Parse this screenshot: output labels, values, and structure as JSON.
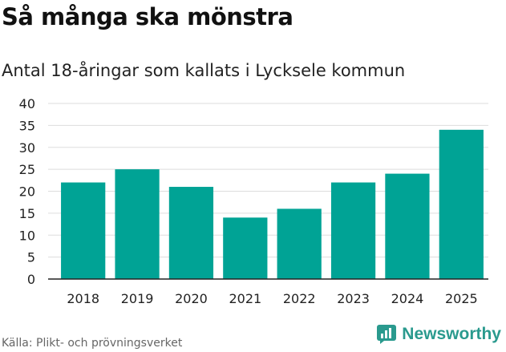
{
  "colors": {
    "bar": "#00A395",
    "grid": "#dddddd",
    "axis": "#222222",
    "brand": "#2a9a8e"
  },
  "title": "Så många ska mönstra",
  "subtitle": "Antal 18-åringar som kallats i Lycksele kommun",
  "footer": {
    "source": "Källa: Plikt- och prövningsverket",
    "brand": "Newsworthy",
    "brand_icon": "newsworthy-logo-icon"
  },
  "chart_data": {
    "type": "bar",
    "title": "Så många ska mönstra",
    "subtitle": "Antal 18-åringar som kallats i Lycksele kommun",
    "xlabel": "",
    "ylabel": "",
    "categories": [
      "2018",
      "2019",
      "2020",
      "2021",
      "2022",
      "2023",
      "2024",
      "2025"
    ],
    "values": [
      22,
      25,
      21,
      14,
      16,
      22,
      24,
      34
    ],
    "ylim": [
      0,
      40
    ],
    "yticks": [
      0,
      5,
      10,
      15,
      20,
      25,
      30,
      35,
      40
    ],
    "grid": true,
    "legend": "none"
  }
}
